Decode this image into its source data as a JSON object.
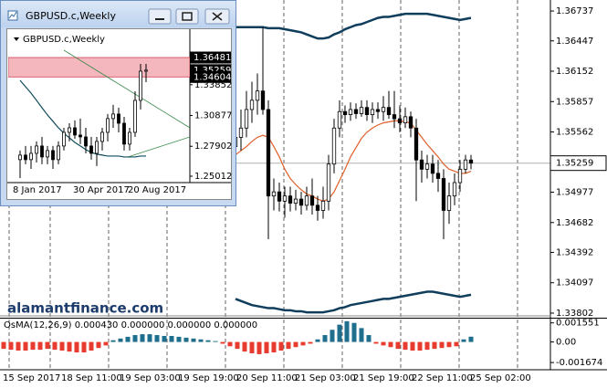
{
  "chart_data": [
    {
      "type": "candlestick",
      "open": [
        1.3542,
        1.3551,
        1.356,
        1.3578,
        1.3587,
        1.3596,
        1.3578,
        1.3494,
        1.3498,
        1.3489,
        1.3494,
        1.3487,
        1.3491,
        1.3485,
        1.3494,
        1.3485,
        1.348,
        1.3489,
        1.3525,
        1.356,
        1.3576,
        1.3573,
        1.3578,
        1.3574,
        1.358,
        1.3573,
        1.3578,
        1.3576,
        1.358,
        1.3573,
        1.3569,
        1.3565,
        1.3571,
        1.356,
        1.3529,
        1.352,
        1.3525,
        1.3516,
        1.3511,
        1.348,
        1.3494,
        1.3507,
        1.352,
        1.3529
      ],
      "high": [
        1.3569,
        1.3578,
        1.3596,
        1.3605,
        1.3613,
        1.3658,
        1.3587,
        1.3511,
        1.3507,
        1.3503,
        1.3503,
        1.35,
        1.3498,
        1.3503,
        1.3511,
        1.3494,
        1.3503,
        1.3534,
        1.3569,
        1.3587,
        1.3582,
        1.3585,
        1.3584,
        1.3587,
        1.3587,
        1.3585,
        1.3585,
        1.3591,
        1.3596,
        1.3596,
        1.3582,
        1.358,
        1.3576,
        1.3569,
        1.3538,
        1.3534,
        1.3534,
        1.3529,
        1.352,
        1.3507,
        1.3516,
        1.3529,
        1.3534,
        1.3534
      ],
      "low": [
        1.352,
        1.3538,
        1.3551,
        1.3565,
        1.3573,
        1.3573,
        1.3452,
        1.348,
        1.3479,
        1.3473,
        1.3479,
        1.348,
        1.3476,
        1.348,
        1.3476,
        1.347,
        1.3472,
        1.348,
        1.3516,
        1.3551,
        1.3565,
        1.3567,
        1.3569,
        1.3571,
        1.3567,
        1.3565,
        1.3569,
        1.3567,
        1.3569,
        1.356,
        1.3556,
        1.356,
        1.3551,
        1.3489,
        1.3507,
        1.3511,
        1.3507,
        1.3498,
        1.3452,
        1.3467,
        1.3485,
        1.3498,
        1.3516,
        1.352
      ],
      "close": [
        1.3551,
        1.356,
        1.3578,
        1.3587,
        1.3596,
        1.3578,
        1.3494,
        1.3498,
        1.3489,
        1.3494,
        1.3487,
        1.3491,
        1.3485,
        1.3494,
        1.3485,
        1.348,
        1.3489,
        1.3525,
        1.356,
        1.3576,
        1.3573,
        1.3578,
        1.3574,
        1.358,
        1.3573,
        1.3578,
        1.3576,
        1.358,
        1.3573,
        1.3569,
        1.3565,
        1.3571,
        1.356,
        1.3529,
        1.352,
        1.3525,
        1.3516,
        1.3511,
        1.348,
        1.3494,
        1.3507,
        1.352,
        1.3529,
        1.35259
      ],
      "lines": [
        {
          "color": "#0f3d5c",
          "values": [
            1.3658,
            1.3658,
            1.3658,
            1.3658,
            1.3658,
            1.3658,
            1.3657,
            1.3657,
            1.3657,
            1.3656,
            1.3655,
            1.3654,
            1.3653,
            1.3651,
            1.3649,
            1.3647,
            1.3647,
            1.3648,
            1.3651,
            1.3653,
            1.3656,
            1.3658,
            1.366,
            1.3661,
            1.3663,
            1.3665,
            1.3667,
            1.3668,
            1.3668,
            1.3669,
            1.367,
            1.3671,
            1.3671,
            1.3671,
            1.3671,
            1.3671,
            1.367,
            1.3669,
            1.3668,
            1.3667,
            1.3666,
            1.3665,
            1.3666,
            1.3667
          ]
        },
        {
          "color": "#0f3d5c",
          "values": [
            1.3394,
            1.3392,
            1.339,
            1.3388,
            1.3387,
            1.3386,
            1.3385,
            1.3385,
            1.3384,
            1.3383,
            1.3383,
            1.3382,
            1.3382,
            1.3381,
            1.3381,
            1.3381,
            1.3381,
            1.3382,
            1.3383,
            1.3385,
            1.3386,
            1.3388,
            1.3389,
            1.339,
            1.3391,
            1.3392,
            1.3393,
            1.3394,
            1.3394,
            1.3395,
            1.3396,
            1.3397,
            1.3398,
            1.3399,
            1.34,
            1.3401,
            1.3401,
            1.34,
            1.3399,
            1.3398,
            1.3397,
            1.3396,
            1.3397,
            1.3398
          ]
        },
        {
          "color": "#e0602a",
          "values": [
            1.3534,
            1.3538,
            1.3542,
            1.3547,
            1.3551,
            1.3553,
            1.3551,
            1.3542,
            1.3532,
            1.352,
            1.3511,
            1.3505,
            1.35,
            1.3496,
            1.3494,
            1.3491,
            1.3489,
            1.3491,
            1.3498,
            1.3509,
            1.352,
            1.3532,
            1.3541,
            1.355,
            1.3556,
            1.356,
            1.3563,
            1.3565,
            1.3566,
            1.3567,
            1.3567,
            1.3566,
            1.3565,
            1.3558,
            1.3551,
            1.3544,
            1.3538,
            1.3532,
            1.3525,
            1.352,
            1.3518,
            1.3516,
            1.3516,
            1.3518
          ]
        }
      ],
      "ylim": [
        1.33784,
        1.36844
      ],
      "yticks": [
        1.33802,
        1.34097,
        1.34392,
        1.34682,
        1.34977,
        1.35562,
        1.35857,
        1.36152,
        1.36447,
        1.36737
      ],
      "bid": 1.35259,
      "x_axis_labels": [
        "15 Sep 2017",
        "18 Sep 11:00",
        "19 Sep 03:00",
        "19 Sep 19:00",
        "20 Sep 11:00",
        "21 Sep 03:00",
        "21 Sep 19:00",
        "22 Sep 11:00",
        "25 Sep 02:00"
      ],
      "watermark": "alamantfinance.com"
    },
    {
      "type": "histogram",
      "title": "OsMA(12,26,9) 0.000430 0.000000 0.000000 0.000000",
      "values": [
        -0.00056,
        -0.00063,
        -0.0007,
        -0.0007,
        -0.00063,
        -0.00063,
        -0.00056,
        -0.00063,
        -0.0007,
        -0.00078,
        -0.00085,
        -0.00085,
        -0.0007,
        -0.00049,
        -0.00028,
        0.00014,
        0.00028,
        0.00042,
        0.00056,
        0.00063,
        0.00063,
        0.00056,
        0.00049,
        0.00049,
        0.00042,
        0.00035,
        0.00028,
        0.00021,
        0.00014,
        7e-05,
        -0.00014,
        -0.00035,
        -0.00056,
        -0.00078,
        -0.00092,
        -0.00099,
        -0.00092,
        -0.00085,
        -0.0007,
        -0.00056,
        -0.00042,
        -0.00028,
        -0.00014,
        0.00021,
        0.00056,
        0.00099,
        0.00141,
        0.00169,
        0.00155,
        0.00113,
        0.00056,
        -0.00014,
        -0.00028,
        -0.00042,
        -0.00056,
        -0.00063,
        -0.0007,
        -0.0007,
        -0.00063,
        -0.00056,
        -0.00049,
        -0.00042,
        -0.00035,
        0.00021,
        0.00043
      ],
      "ylim": [
        -0.00226,
        0.0019
      ],
      "yticks": [
        -0.001674,
        {
          "value": 0,
          "label": "0.00"
        },
        0.001551
      ],
      "positive_color": "#1f6e8c",
      "negative_color": "#e63b2e"
    },
    {
      "type": "candlestick",
      "window_title": "GBPUSD.c,Weekly",
      "title": "GBPUSD.c,Weekly",
      "categories": [
        "8 Jan 2017",
        null,
        null,
        null,
        null,
        null,
        null,
        null,
        null,
        null,
        null,
        "30 Apr 2017",
        null,
        null,
        null,
        null,
        null,
        null,
        null,
        null,
        null,
        "20 Aug 2017",
        null,
        null
      ],
      "open": [
        1.2661,
        1.2705,
        1.2661,
        1.2722,
        1.2793,
        1.2687,
        1.2749,
        1.2661,
        1.2793,
        1.2925,
        1.2969,
        1.2899,
        1.2881,
        1.2793,
        1.2722,
        1.2837,
        1.2925,
        1.3058,
        1.3102,
        1.3013,
        1.2811,
        1.2925,
        1.3234,
        1.3516
      ],
      "high": [
        1.2749,
        1.2793,
        1.2793,
        1.2837,
        1.2881,
        1.2793,
        1.2793,
        1.2837,
        1.2969,
        1.3013,
        1.304,
        1.3058,
        1.2969,
        1.2881,
        1.2881,
        1.2969,
        1.3102,
        1.319,
        1.3163,
        1.3075,
        1.2969,
        1.3322,
        1.3587,
        1.3587
      ],
      "low": [
        1.2484,
        1.2617,
        1.2572,
        1.2634,
        1.2617,
        1.2617,
        1.2572,
        1.2617,
        1.2749,
        1.2837,
        1.2863,
        1.2811,
        1.2722,
        1.2661,
        1.2599,
        1.2749,
        1.2837,
        1.2969,
        1.2925,
        1.2749,
        1.2749,
        1.2881,
        1.3146,
        1.341
      ],
      "close": [
        1.2705,
        1.2661,
        1.2722,
        1.2793,
        1.2687,
        1.2749,
        1.2661,
        1.2793,
        1.2925,
        1.2969,
        1.2899,
        1.2881,
        1.2793,
        1.2722,
        1.2837,
        1.2925,
        1.3058,
        1.3102,
        1.3013,
        1.2811,
        1.2925,
        1.3234,
        1.3516,
        1.35259
      ],
      "lines": [
        {
          "color": "#0f4c5c",
          "values": [
            1.3428,
            1.3366,
            1.3304,
            1.3234,
            1.3163,
            1.3093,
            1.3031,
            1.2969,
            1.2916,
            1.2872,
            1.2828,
            1.2793,
            1.2758,
            1.2731,
            1.2714,
            1.2705,
            1.2696,
            1.2696,
            1.2696,
            1.2687,
            1.2687,
            1.2687,
            1.2696,
            1.2696
          ]
        }
      ],
      "ylim": [
        1.2457,
        1.3913
      ],
      "yticks": [
        1.25012,
        1.27902,
        1.30877,
        1.33852
      ],
      "zone": {
        "top": 1.36481,
        "bottom": 1.34604
      },
      "zone_color": "#f5b7be",
      "bid": 1.35259
    }
  ]
}
